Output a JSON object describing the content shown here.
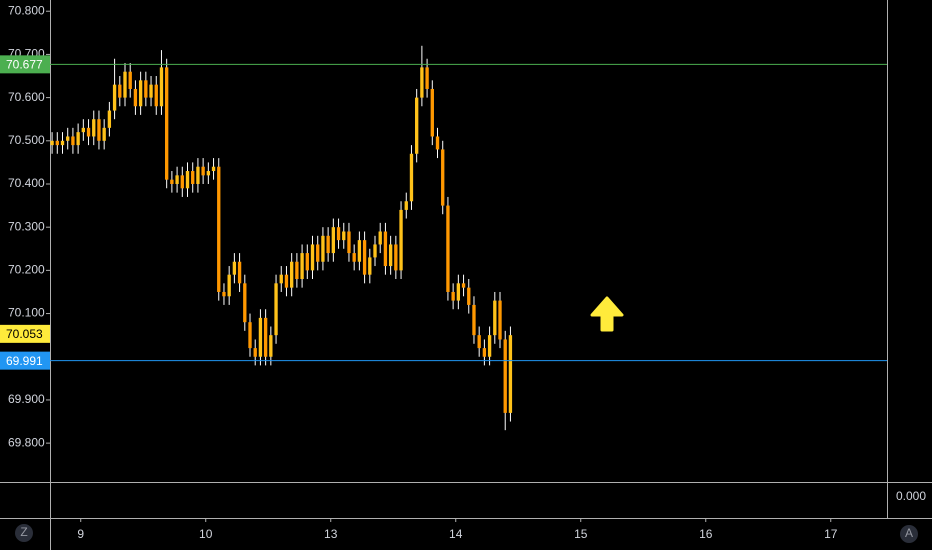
{
  "chart_data": {
    "type": "candlestick",
    "up_color": "#ffc21a",
    "down_color": "#ff9800",
    "wick_color": "#ffffff",
    "open": [
      70.49,
      70.5,
      70.49,
      70.5,
      70.51,
      70.49,
      70.52,
      70.53,
      70.51,
      70.55,
      70.5,
      70.53,
      70.57,
      70.63,
      70.6,
      70.66,
      70.62,
      70.58,
      70.64,
      70.6,
      70.63,
      70.58,
      70.67,
      70.41,
      70.4,
      70.42,
      70.39,
      70.43,
      70.4,
      70.44,
      70.42,
      70.43,
      70.44,
      70.15,
      70.14,
      70.19,
      70.22,
      70.17,
      70.08,
      70.02,
      70.0,
      70.09,
      70.0,
      70.05,
      70.17,
      70.19,
      70.16,
      70.22,
      70.18,
      70.24,
      70.2,
      70.26,
      70.22,
      70.28,
      70.24,
      70.3,
      70.27,
      70.29,
      70.24,
      70.22,
      70.27,
      70.19,
      70.23,
      70.26,
      70.29,
      70.21,
      70.26,
      70.2,
      70.34,
      70.36,
      70.47,
      70.6,
      70.67,
      70.62,
      70.51,
      70.48,
      70.35,
      70.15,
      70.13,
      70.17,
      70.16,
      70.12,
      70.05,
      70.02,
      70.0,
      70.05,
      70.13,
      70.04,
      69.87
    ],
    "high": [
      70.52,
      70.52,
      70.52,
      70.53,
      70.53,
      70.54,
      70.55,
      70.55,
      70.57,
      70.57,
      70.55,
      70.59,
      70.69,
      70.65,
      70.68,
      70.68,
      70.64,
      70.66,
      70.66,
      70.65,
      70.65,
      70.71,
      70.69,
      70.43,
      70.44,
      70.44,
      70.45,
      70.45,
      70.46,
      70.46,
      70.45,
      70.46,
      70.46,
      70.17,
      70.21,
      70.24,
      70.24,
      70.19,
      70.1,
      70.04,
      70.11,
      70.11,
      70.07,
      70.19,
      70.21,
      70.21,
      70.24,
      70.24,
      70.26,
      70.26,
      70.28,
      70.28,
      70.3,
      70.3,
      70.32,
      70.32,
      70.31,
      70.31,
      70.26,
      70.29,
      70.29,
      70.25,
      70.28,
      70.31,
      70.31,
      70.28,
      70.28,
      70.36,
      70.38,
      70.49,
      70.62,
      70.72,
      70.69,
      70.64,
      70.53,
      70.5,
      70.37,
      70.17,
      70.19,
      70.19,
      70.18,
      70.14,
      70.07,
      70.04,
      70.07,
      70.15,
      70.15,
      70.06,
      70.07
    ],
    "low": [
      70.47,
      70.47,
      70.47,
      70.48,
      70.47,
      70.47,
      70.5,
      70.49,
      70.49,
      70.48,
      70.48,
      70.51,
      70.55,
      70.58,
      70.58,
      70.6,
      70.56,
      70.56,
      70.58,
      70.58,
      70.56,
      70.56,
      70.39,
      70.38,
      70.38,
      70.37,
      70.37,
      70.38,
      70.38,
      70.4,
      70.4,
      70.41,
      70.13,
      70.12,
      70.12,
      70.17,
      70.15,
      70.06,
      70.0,
      69.98,
      69.98,
      69.98,
      69.98,
      70.03,
      70.15,
      70.14,
      70.14,
      70.16,
      70.16,
      70.18,
      70.18,
      70.2,
      70.2,
      70.22,
      70.22,
      70.25,
      70.25,
      70.22,
      70.2,
      70.2,
      70.17,
      70.17,
      70.21,
      70.24,
      70.19,
      70.19,
      70.18,
      70.18,
      70.32,
      70.34,
      70.45,
      70.58,
      70.6,
      70.49,
      70.46,
      70.33,
      70.13,
      70.11,
      70.11,
      70.14,
      70.1,
      70.03,
      70.0,
      69.98,
      69.98,
      70.03,
      70.02,
      69.83,
      69.85
    ],
    "close": [
      70.5,
      70.49,
      70.5,
      70.51,
      70.49,
      70.52,
      70.53,
      70.51,
      70.55,
      70.5,
      70.53,
      70.57,
      70.63,
      70.6,
      70.66,
      70.62,
      70.58,
      70.64,
      70.6,
      70.63,
      70.58,
      70.67,
      70.41,
      70.4,
      70.42,
      70.39,
      70.43,
      70.4,
      70.44,
      70.42,
      70.43,
      70.44,
      70.15,
      70.14,
      70.19,
      70.22,
      70.17,
      70.08,
      70.02,
      70.0,
      70.09,
      70.0,
      70.05,
      70.17,
      70.19,
      70.16,
      70.22,
      70.18,
      70.24,
      70.2,
      70.26,
      70.22,
      70.28,
      70.24,
      70.3,
      70.27,
      70.29,
      70.24,
      70.22,
      70.27,
      70.19,
      70.23,
      70.26,
      70.29,
      70.21,
      70.26,
      70.2,
      70.34,
      70.36,
      70.47,
      70.6,
      70.67,
      70.62,
      70.51,
      70.48,
      70.35,
      70.15,
      70.13,
      70.17,
      70.16,
      70.12,
      70.05,
      70.02,
      70.0,
      70.05,
      70.13,
      70.04,
      69.87,
      70.05
    ],
    "xlim": [
      -0.4,
      160.3
    ],
    "xticks": [
      {
        "value": 5.5,
        "label": "9"
      },
      {
        "value": 29.5,
        "label": "10"
      },
      {
        "value": 53.5,
        "label": "13"
      },
      {
        "value": 77.5,
        "label": "14"
      },
      {
        "value": 101.5,
        "label": "15"
      },
      {
        "value": 125.5,
        "label": "16"
      },
      {
        "value": 149.5,
        "label": "17"
      }
    ],
    "ylim": [
      69.71,
      70.826
    ],
    "yticks": [
      {
        "value": 70.8,
        "label": "70.800"
      },
      {
        "value": 70.7,
        "label": "70.700"
      },
      {
        "value": 70.6,
        "label": "70.600"
      },
      {
        "value": 70.5,
        "label": "70.500"
      },
      {
        "value": 70.4,
        "label": "70.400"
      },
      {
        "value": 70.3,
        "label": "70.300"
      },
      {
        "value": 70.2,
        "label": "70.200"
      },
      {
        "value": 70.1,
        "label": "70.100"
      },
      {
        "value": 69.9,
        "label": "69.900"
      },
      {
        "value": 69.8,
        "label": "69.800"
      }
    ],
    "levels": [
      {
        "value": 70.677,
        "color": "#4caf50",
        "text_color": "#ffffff"
      },
      {
        "value": 69.991,
        "color": "#2196f3",
        "text_color": "#ffffff"
      }
    ],
    "last_price": {
      "value": 70.053,
      "color": "#ffeb3b",
      "text_color": "#000000"
    },
    "indicator_label": "0.000",
    "buttons": {
      "left": "Z",
      "right": "A"
    }
  }
}
